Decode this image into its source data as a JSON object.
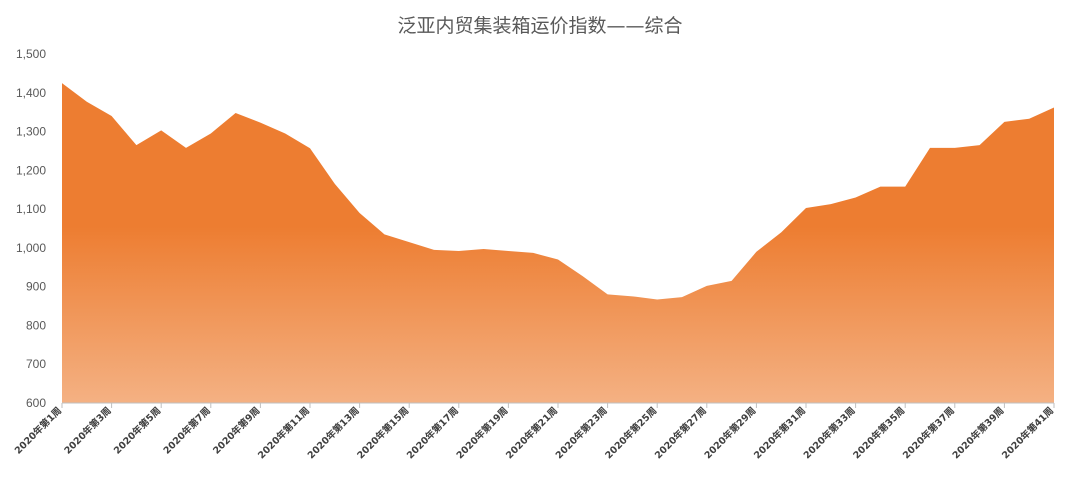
{
  "chart_data": {
    "type": "area",
    "title": "泛亚内贸集装箱运价指数——综合",
    "ylim": [
      600,
      1500
    ],
    "yticks": [
      600,
      700,
      800,
      900,
      1000,
      1100,
      1200,
      1300,
      1400,
      1500
    ],
    "ytick_labels": [
      "600",
      "700",
      "800",
      "900",
      "1,000",
      "1,100",
      "1,200",
      "1,300",
      "1,400",
      "1,500"
    ],
    "x": [
      "2020年第1周",
      "2020年第2周",
      "2020年第3周",
      "2020年第4周",
      "2020年第5周",
      "2020年第6周",
      "2020年第7周",
      "2020年第8周",
      "2020年第9周",
      "2020年第10周",
      "2020年第11周",
      "2020年第12周",
      "2020年第13周",
      "2020年第14周",
      "2020年第15周",
      "2020年第16周",
      "2020年第17周",
      "2020年第18周",
      "2020年第19周",
      "2020年第20周",
      "2020年第21周",
      "2020年第22周",
      "2020年第23周",
      "2020年第24周",
      "2020年第25周",
      "2020年第26周",
      "2020年第27周",
      "2020年第28周",
      "2020年第29周",
      "2020年第30周",
      "2020年第31周",
      "2020年第32周",
      "2020年第33周",
      "2020年第34周",
      "2020年第35周",
      "2020年第36周",
      "2020年第37周",
      "2020年第38周",
      "2020年第39周",
      "2020年第40周",
      "2020年第41周"
    ],
    "x_labeled_every": 2,
    "series": [
      {
        "values": [
          1425,
          1377,
          1340,
          1265,
          1303,
          1258,
          1295,
          1348,
          1323,
          1295,
          1257,
          1165,
          1090,
          1035,
          1015,
          995,
          992,
          997,
          992,
          987,
          970,
          927,
          880,
          875,
          867,
          873,
          902,
          915,
          990,
          1040,
          1103,
          1113,
          1130,
          1158,
          1158,
          1258,
          1258,
          1265,
          1325,
          1333,
          1362
        ],
        "color_top": "#ED7D31",
        "color_bottom": "#F4B183"
      }
    ],
    "grid": false,
    "legend": "none"
  }
}
